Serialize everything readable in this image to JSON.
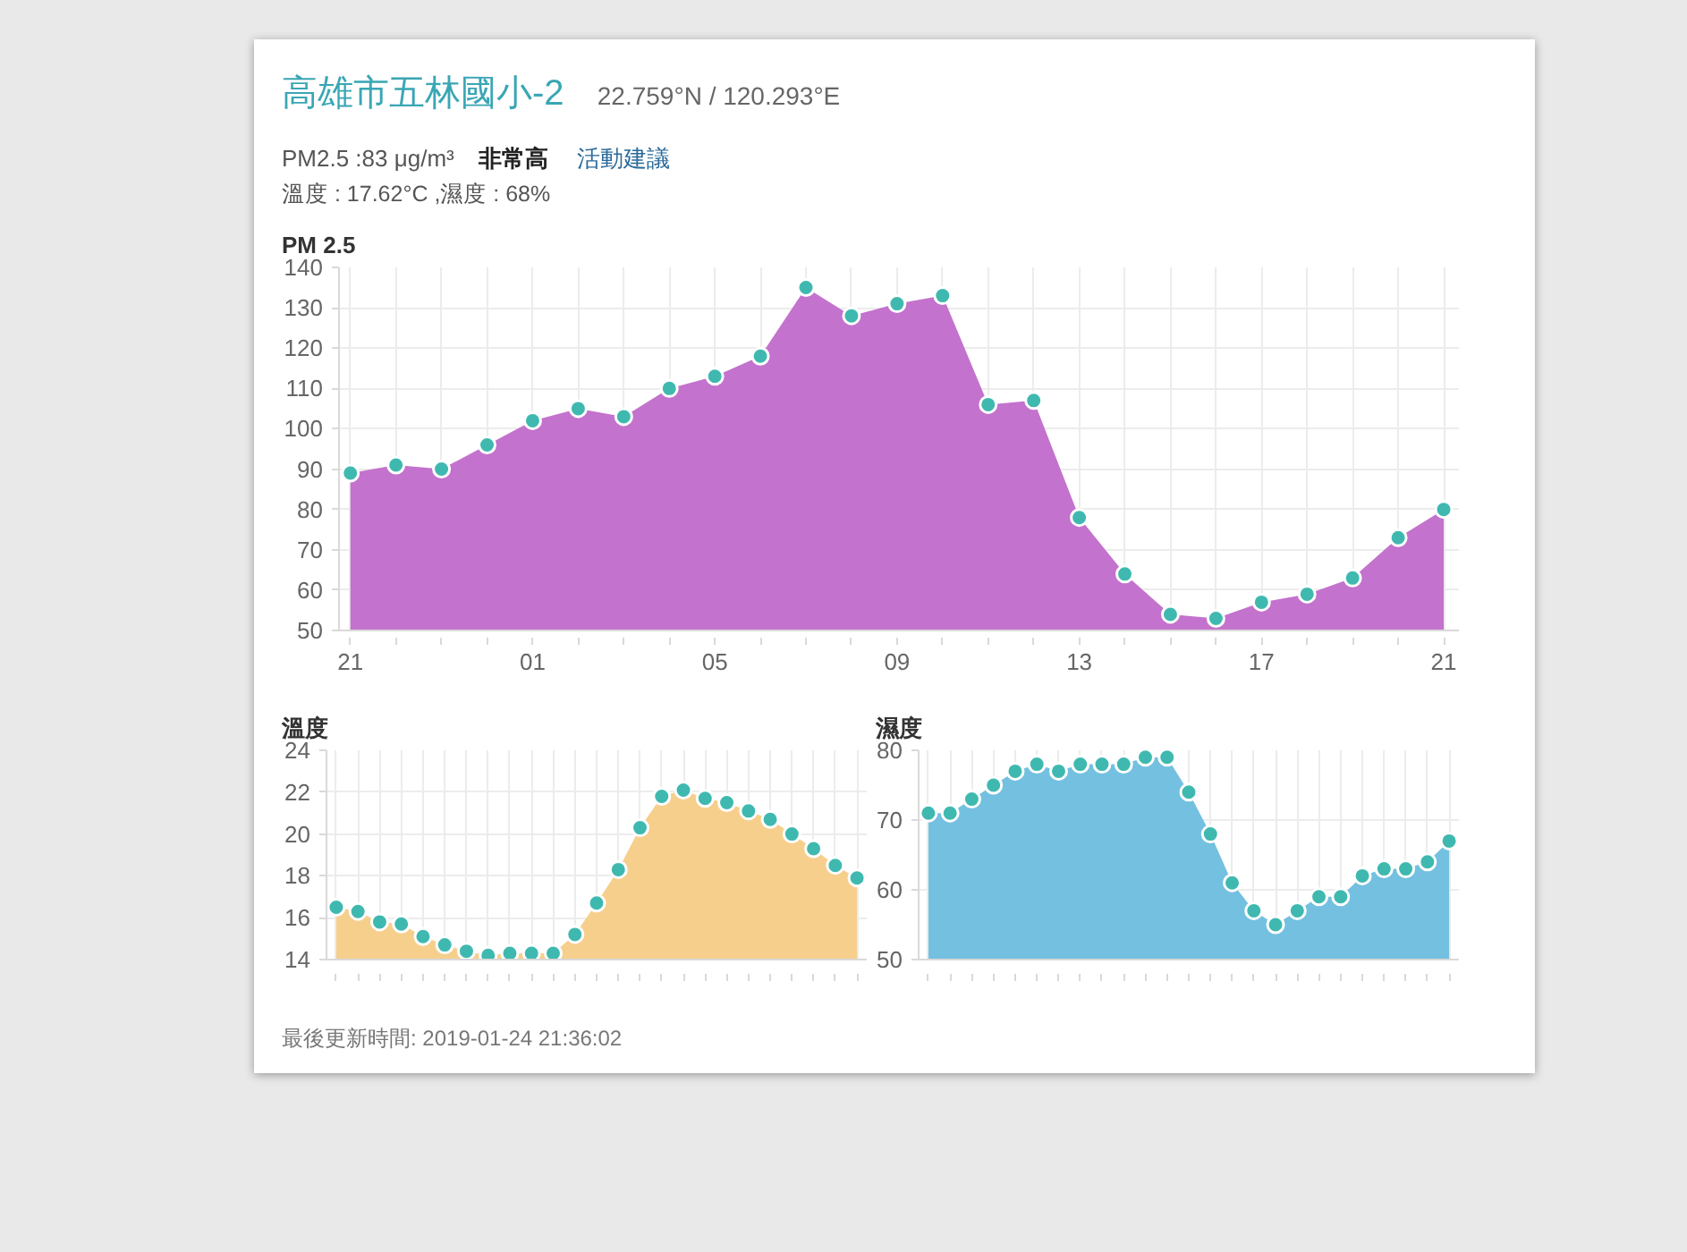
{
  "chart_data": [
    {
      "type": "other",
      "title": "高雄市五林國小-2",
      "subtitle": "22.759°N / 120.293°E",
      "annotations": [
        "PM2.5 :83 μg/m³",
        "非常高",
        "活動建議",
        "溫度 : 17.62°C ,濕度 : 68%"
      ]
    },
    {
      "type": "area",
      "title": "PM 2.5",
      "x": [
        "2019-01-23T21:00",
        "2019-01-23T22:00",
        "2019-01-23T23:00",
        "2019-01-24T00:00",
        "2019-01-24T01:00",
        "2019-01-24T02:00",
        "2019-01-24T03:00",
        "2019-01-24T04:00",
        "2019-01-24T05:00",
        "2019-01-24T06:00",
        "2019-01-24T07:00",
        "2019-01-24T08:00",
        "2019-01-24T09:00",
        "2019-01-24T10:00",
        "2019-01-24T11:00",
        "2019-01-24T12:00",
        "2019-01-24T13:00",
        "2019-01-24T14:00",
        "2019-01-24T15:00",
        "2019-01-24T16:00",
        "2019-01-24T17:00",
        "2019-01-24T18:00",
        "2019-01-24T19:00",
        "2019-01-24T20:00",
        "2019-01-24T21:00"
      ],
      "xlim": [
        "2019-01-23T20:45",
        "2019-01-24T21:20"
      ],
      "xticks": [
        {
          "value": "2019-01-23T21:00",
          "label": "21"
        },
        {
          "value": "2019-01-23T22:00",
          "label": null
        },
        {
          "value": "2019-01-23T23:00",
          "label": null
        },
        {
          "value": "2019-01-24T00:00",
          "label": null
        },
        {
          "value": "2019-01-24T01:00",
          "label": "01"
        },
        {
          "value": "2019-01-24T02:00",
          "label": null
        },
        {
          "value": "2019-01-24T03:00",
          "label": null
        },
        {
          "value": "2019-01-24T04:00",
          "label": null
        },
        {
          "value": "2019-01-24T05:00",
          "label": "05"
        },
        {
          "value": "2019-01-24T06:00",
          "label": null
        },
        {
          "value": "2019-01-24T07:00",
          "label": null
        },
        {
          "value": "2019-01-24T08:00",
          "label": null
        },
        {
          "value": "2019-01-24T09:00",
          "label": "09"
        },
        {
          "value": "2019-01-24T10:00",
          "label": null
        },
        {
          "value": "2019-01-24T11:00",
          "label": null
        },
        {
          "value": "2019-01-24T12:00",
          "label": null
        },
        {
          "value": "2019-01-24T13:00",
          "label": "13"
        },
        {
          "value": "2019-01-24T14:00",
          "label": null
        },
        {
          "value": "2019-01-24T15:00",
          "label": null
        },
        {
          "value": "2019-01-24T16:00",
          "label": null
        },
        {
          "value": "2019-01-24T17:00",
          "label": "17"
        },
        {
          "value": "2019-01-24T18:00",
          "label": null
        },
        {
          "value": "2019-01-24T19:00",
          "label": null
        },
        {
          "value": "2019-01-24T20:00",
          "label": null
        },
        {
          "value": "2019-01-24T21:00",
          "label": "21"
        }
      ],
      "ylim": [
        50,
        140
      ],
      "yticks": [
        50,
        60,
        70,
        80,
        90,
        100,
        110,
        120,
        130,
        140
      ],
      "grid": true,
      "series": [
        {
          "type": "area",
          "color": "#c372cd",
          "values": [
            89,
            91,
            90,
            96,
            102,
            105,
            103,
            110,
            113,
            118,
            135,
            128,
            131,
            133,
            106,
            107,
            78,
            64,
            54,
            53,
            57,
            59,
            63,
            73,
            80
          ]
        },
        {
          "type": "scatter",
          "marker": "circle",
          "color": "#3fb9b0",
          "values": [
            89,
            91,
            90,
            96,
            102,
            105,
            103,
            110,
            113,
            118,
            135,
            128,
            131,
            133,
            106,
            107,
            78,
            64,
            54,
            53,
            57,
            59,
            63,
            73,
            80
          ]
        }
      ]
    },
    {
      "type": "area",
      "title": "溫度",
      "categories": [
        null,
        null,
        null,
        null,
        null,
        null,
        null,
        null,
        null,
        null,
        null,
        null,
        null,
        null,
        null,
        null,
        null,
        null,
        null,
        null,
        null,
        null,
        null,
        null,
        null
      ],
      "ylim": [
        14,
        24
      ],
      "yticks": [
        14,
        16,
        18,
        20,
        22,
        24
      ],
      "grid": true,
      "series": [
        {
          "type": "area",
          "color": "#f6cf8d",
          "values": [
            16.5,
            16.3,
            15.8,
            15.7,
            15.1,
            14.7,
            14.4,
            14.2,
            14.3,
            14.3,
            14.3,
            15.2,
            16.7,
            18.3,
            20.3,
            21.8,
            22.1,
            21.7,
            21.5,
            21.1,
            20.7,
            20.0,
            19.3,
            18.5,
            17.9
          ]
        },
        {
          "type": "scatter",
          "marker": "circle",
          "color": "#3fb9b0",
          "values": [
            16.5,
            16.3,
            15.8,
            15.7,
            15.1,
            14.7,
            14.4,
            14.2,
            14.3,
            14.3,
            14.3,
            15.2,
            16.7,
            18.3,
            20.3,
            21.8,
            22.1,
            21.7,
            21.5,
            21.1,
            20.7,
            20.0,
            19.3,
            18.5,
            17.9
          ]
        }
      ]
    },
    {
      "type": "area",
      "title": "濕度",
      "categories": [
        null,
        null,
        null,
        null,
        null,
        null,
        null,
        null,
        null,
        null,
        null,
        null,
        null,
        null,
        null,
        null,
        null,
        null,
        null,
        null,
        null,
        null,
        null,
        null,
        null
      ],
      "ylim": [
        50,
        80
      ],
      "yticks": [
        50,
        60,
        70,
        80
      ],
      "grid": true,
      "series": [
        {
          "type": "area",
          "color": "#74c0e0",
          "values": [
            71,
            71,
            73,
            75,
            77,
            78,
            77,
            78,
            78,
            78,
            79,
            79,
            74,
            68,
            61,
            57,
            55,
            57,
            59,
            59,
            62,
            63,
            63,
            64,
            67
          ]
        },
        {
          "type": "scatter",
          "marker": "circle",
          "color": "#3fb9b0",
          "values": [
            71,
            71,
            73,
            75,
            77,
            78,
            77,
            78,
            78,
            78,
            79,
            79,
            74,
            68,
            61,
            57,
            55,
            57,
            59,
            59,
            62,
            63,
            63,
            64,
            67
          ]
        }
      ]
    },
    {
      "type": "other",
      "annotations": [
        "最後更新時間: 2019-01-24 21:36:02"
      ]
    }
  ]
}
